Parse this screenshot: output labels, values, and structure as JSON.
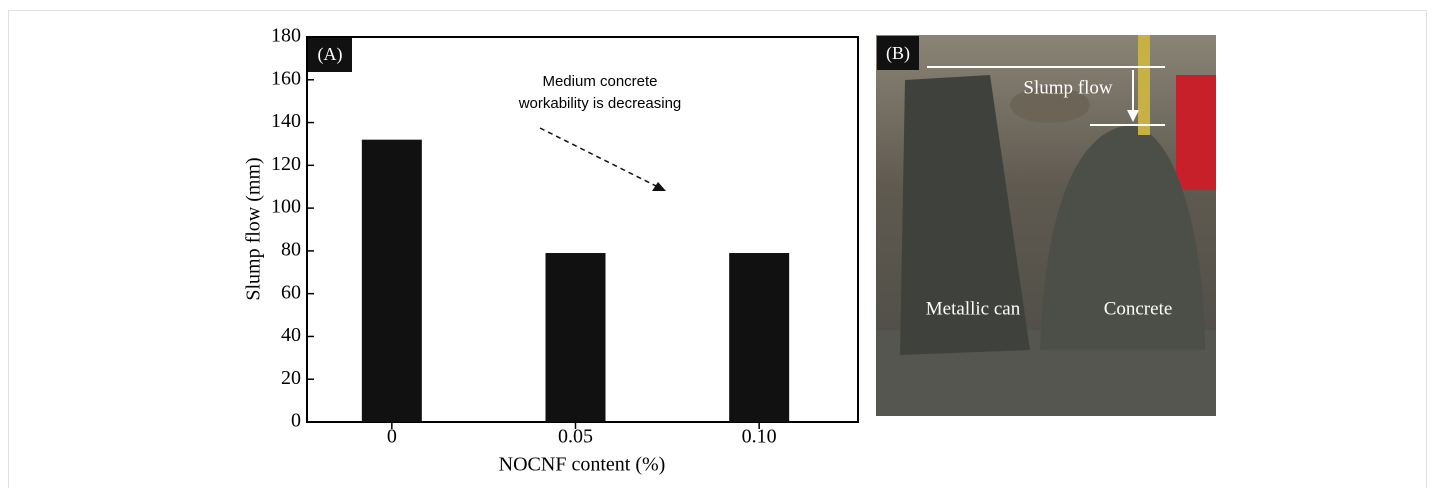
{
  "chart_data": {
    "type": "bar",
    "panel_label": "(A)",
    "categories": [
      "0",
      "0.05",
      "0.10"
    ],
    "values": [
      132,
      79,
      79
    ],
    "color": "#111111",
    "ylabel": "Slump flow (mm)",
    "xlabel": "NOCNF content (%)",
    "ylim": [
      0,
      180
    ],
    "yticks": [
      0,
      20,
      40,
      60,
      80,
      100,
      120,
      140,
      160,
      180
    ],
    "annotation": [
      "Medium concrete",
      "workability is decreasing"
    ]
  },
  "photo": {
    "panel_label": "(B)",
    "labels": [
      "Slump flow",
      "Metallic can",
      "Concrete"
    ]
  }
}
